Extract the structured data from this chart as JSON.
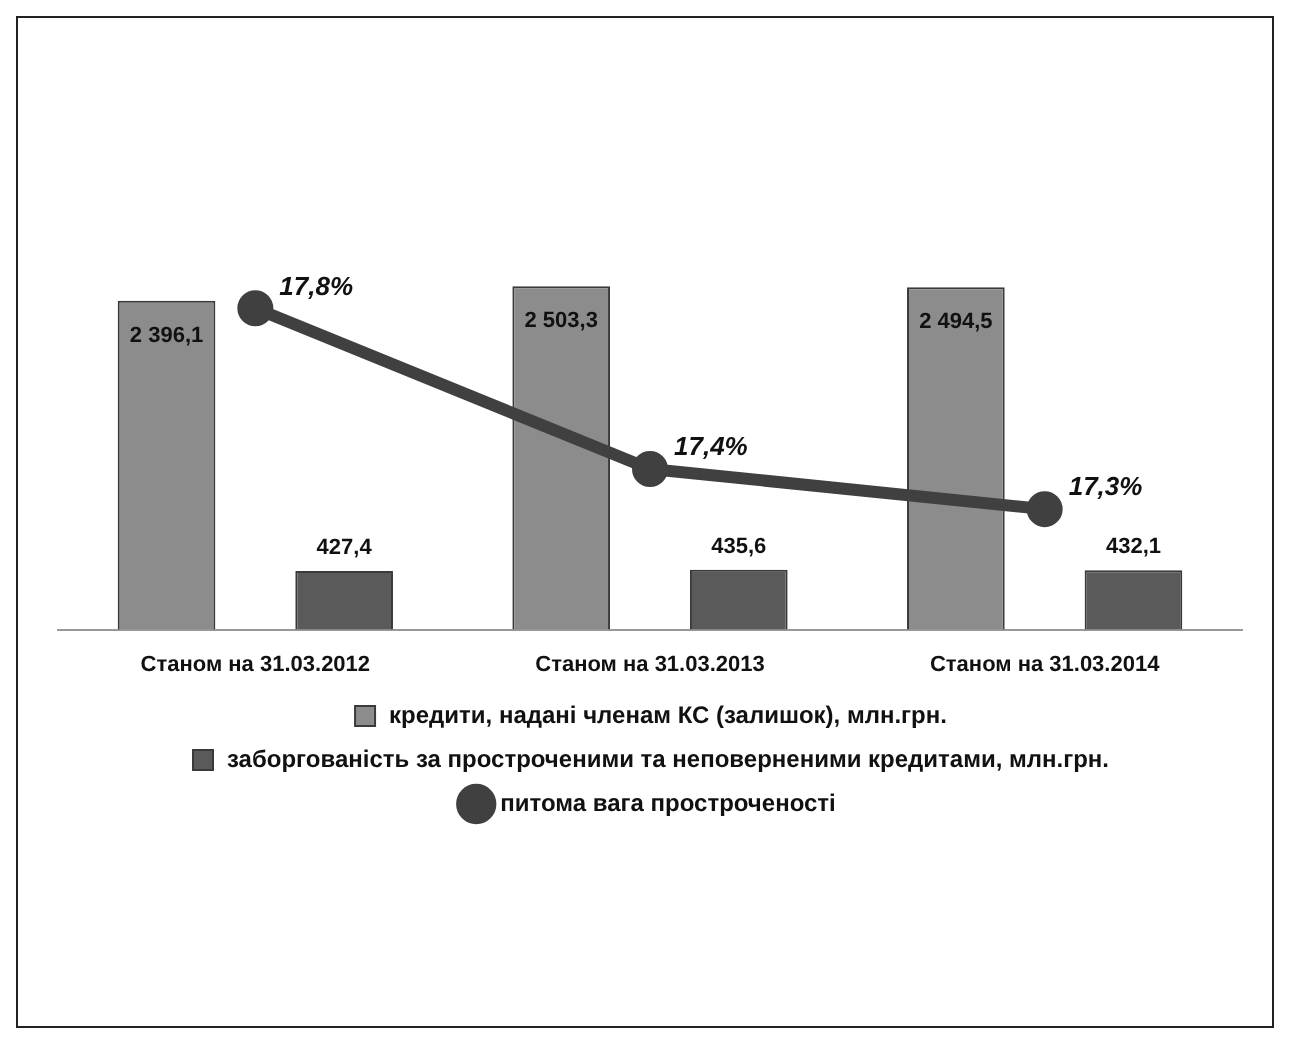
{
  "chart_data": {
    "type": "bar",
    "categories": [
      "Станом на 31.03.2012",
      "Станом на 31.03.2013",
      "Станом на 31.03.2014"
    ],
    "series": [
      {
        "name": "кредити, надані членам КС (залишок), млн.грн.",
        "color": "#8c8c8c",
        "values": [
          2396.1,
          2503.3,
          2494.5
        ],
        "value_labels": [
          "2 396,1",
          "2 503,3",
          "2 494,5"
        ]
      },
      {
        "name": "заборгованість за простроченими та неповерненими кредитами, млн.грн.",
        "color": "#5a5a5a",
        "values": [
          427.4,
          435.6,
          432.1
        ],
        "value_labels": [
          "427,4",
          "435,6",
          "432,1"
        ]
      },
      {
        "name": "питома вага простроченості",
        "type": "line",
        "axis": "y2",
        "color": "#404040",
        "marker": "circle",
        "values": [
          17.8,
          17.4,
          17.3
        ],
        "value_labels": [
          "17,8%",
          "17,4%",
          "17,3%"
        ]
      }
    ],
    "legend": "bottom",
    "grid": false,
    "tick_labels": "x"
  }
}
